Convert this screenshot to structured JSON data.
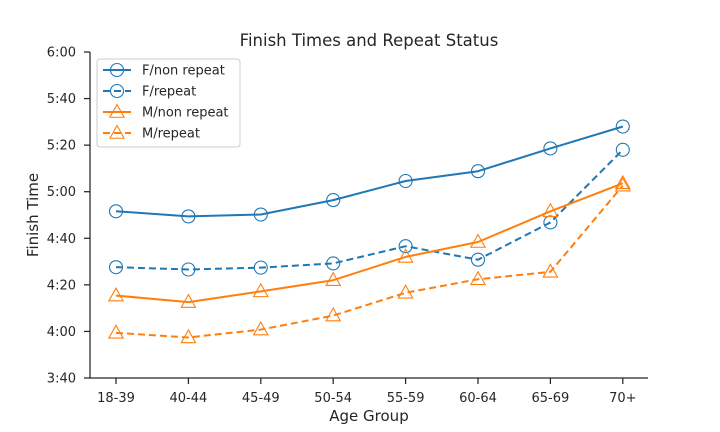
{
  "chart_data": {
    "type": "line",
    "title": "Finish Times and Repeat Status",
    "xlabel": "Age Group",
    "ylabel": "Finish Time",
    "categories": [
      "18-39",
      "40-44",
      "45-49",
      "50-54",
      "55-59",
      "60-64",
      "65-69",
      "70+"
    ],
    "y_unit": "minutes",
    "ylim": [
      220,
      360
    ],
    "y_ticks": [
      220,
      240,
      260,
      280,
      300,
      320,
      340,
      360
    ],
    "y_tick_labels": [
      "3:40",
      "4:00",
      "4:20",
      "4:40",
      "5:00",
      "5:20",
      "5:40",
      "6:00"
    ],
    "grid": false,
    "legend_position": "top-left",
    "series": [
      {
        "name": "F/non repeat",
        "color": "#1f77b4",
        "dash": "solid",
        "marker": "circle",
        "values": [
          291.6,
          289.4,
          290.2,
          296.4,
          304.6,
          308.8,
          318.6,
          328.0
        ]
      },
      {
        "name": "F/repeat",
        "color": "#1f77b4",
        "dash": "dashed",
        "marker": "circle",
        "values": [
          267.6,
          266.6,
          267.4,
          269.2,
          276.6,
          270.8,
          286.8,
          318.0
        ]
      },
      {
        "name": "M/non repeat",
        "color": "#ff7f0e",
        "dash": "solid",
        "marker": "triangle",
        "values": [
          255.4,
          252.6,
          257.2,
          262.0,
          272.0,
          278.4,
          291.6,
          303.6
        ]
      },
      {
        "name": "M/repeat",
        "color": "#ff7f0e",
        "dash": "dashed",
        "marker": "triangle",
        "values": [
          239.4,
          237.4,
          240.8,
          246.8,
          256.6,
          262.4,
          265.6,
          302.6
        ]
      }
    ]
  }
}
